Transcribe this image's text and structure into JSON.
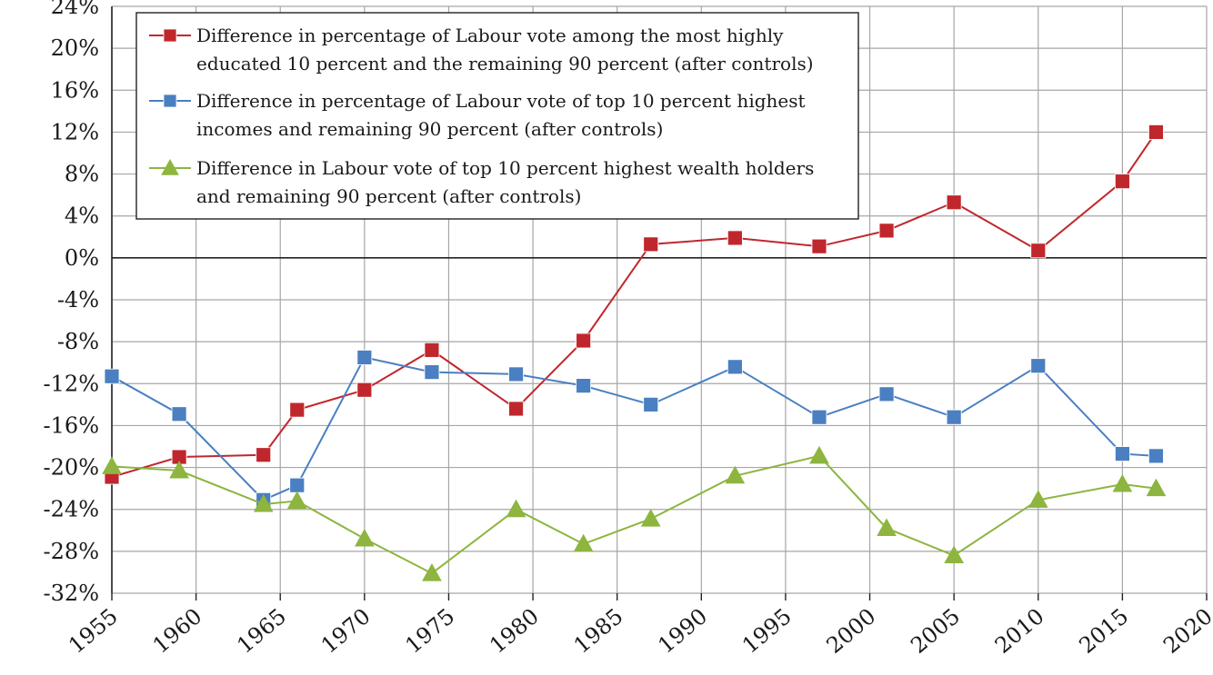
{
  "chart_data": {
    "type": "line",
    "title": "",
    "xlabel": "",
    "ylabel": "",
    "xlim": [
      1955,
      2020
    ],
    "ylim": [
      -32,
      24
    ],
    "grid": true,
    "legend_position": "top-left",
    "x_ticks": [
      "1955",
      "1960",
      "1965",
      "1970",
      "1975",
      "1980",
      "1985",
      "1990",
      "1995",
      "2000",
      "2005",
      "2010",
      "2015",
      "2020"
    ],
    "y_ticks": [
      "24%",
      "20%",
      "16%",
      "12%",
      "8%",
      "4%",
      "0%",
      "-4%",
      "-8%",
      "-12%",
      "-16%",
      "-20%",
      "-24%",
      "-28%",
      "-32%"
    ],
    "y_tick_values": [
      24,
      20,
      16,
      12,
      8,
      4,
      0,
      -4,
      -8,
      -12,
      -16,
      -20,
      -24,
      -28,
      -32
    ],
    "series": [
      {
        "name": "Difference in percentage of Labour vote among the most highly educated 10 percent and the remaining 90 percent (after controls)",
        "legend_lines": [
          "Difference in percentage of Labour vote among the most highly",
          "educated 10 percent and the remaining 90 percent (after controls)"
        ],
        "color": "#c0272d",
        "marker": "square",
        "x": [
          1955,
          1959,
          1964,
          1966,
          1970,
          1974,
          1979,
          1983,
          1987,
          1992,
          1997,
          2001,
          2005,
          2010,
          2015,
          2017
        ],
        "values": [
          -20.9,
          -19.0,
          -18.8,
          -14.5,
          -12.6,
          -8.8,
          -14.4,
          -7.9,
          1.3,
          1.9,
          1.1,
          2.6,
          5.3,
          0.7,
          7.3,
          12.0
        ]
      },
      {
        "name": "Difference in percentage of Labour vote of top 10 percent highest incomes and remaining 90 percent (after controls)",
        "legend_lines": [
          "Difference in percentage of Labour vote of top 10 percent highest",
          "incomes and remaining 90 percent (after controls)"
        ],
        "color": "#4a7fc1",
        "marker": "square",
        "x": [
          1955,
          1959,
          1964,
          1966,
          1970,
          1974,
          1979,
          1983,
          1987,
          1992,
          1997,
          2001,
          2005,
          2010,
          2015,
          2017
        ],
        "values": [
          -11.3,
          -14.9,
          -23.1,
          -21.7,
          -9.5,
          -10.9,
          -11.1,
          -12.2,
          -14.0,
          -10.4,
          -15.2,
          -13.0,
          -15.2,
          -10.3,
          -18.7,
          -18.9
        ]
      },
      {
        "name": "Difference in Labour vote of top 10 percent highest wealth holders and remaining 90 percent (after controls)",
        "legend_lines": [
          "Difference in Labour vote of top 10 percent highest wealth holders",
          "and remaining 90 percent (after controls)"
        ],
        "color": "#8db53f",
        "marker": "triangle",
        "x": [
          1955,
          1959,
          1964,
          1966,
          1970,
          1974,
          1979,
          1983,
          1987,
          1992,
          1997,
          2001,
          2005,
          2010,
          2015,
          2017
        ],
        "values": [
          -19.9,
          -20.3,
          -23.5,
          -23.2,
          -26.8,
          -30.1,
          -24.0,
          -27.3,
          -24.9,
          -20.8,
          -18.9,
          -25.8,
          -28.4,
          -23.1,
          -21.6,
          -22.0
        ]
      }
    ]
  }
}
